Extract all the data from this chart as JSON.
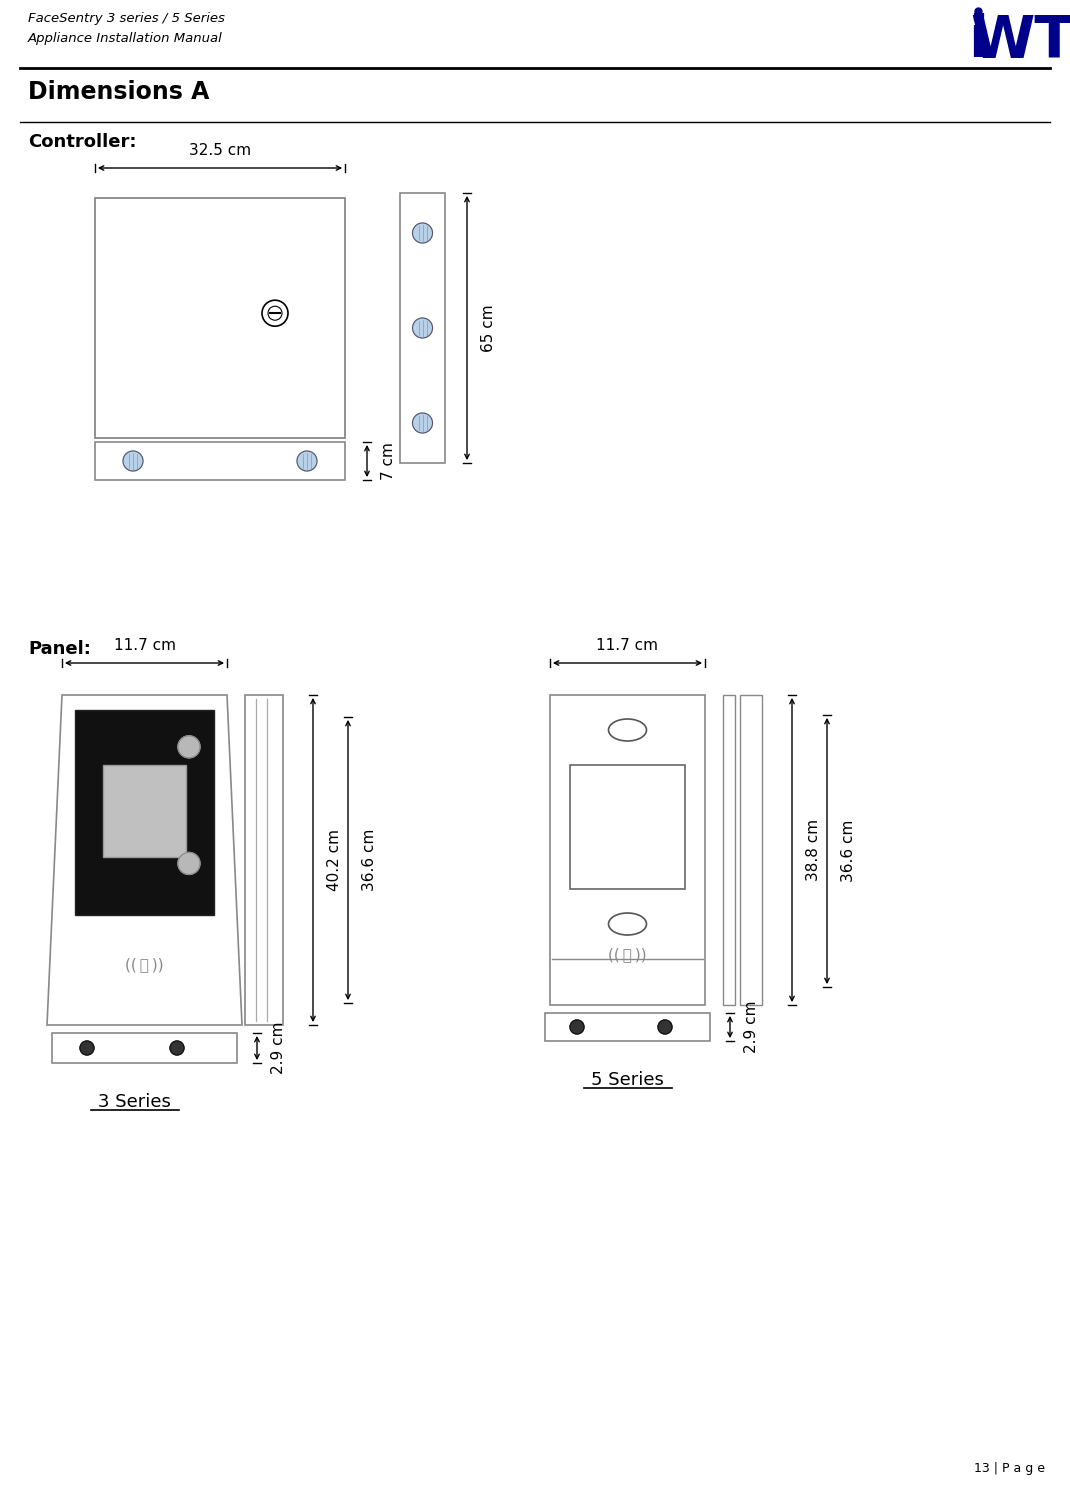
{
  "title_line1": "FaceSentry 3 series / 5 Series",
  "title_line2": "Appliance Installation Manual",
  "section_title": "Dimensions A",
  "controller_label": "Controller:",
  "panel_label": "Panel:",
  "controller_width_label": "32.5 cm",
  "controller_side_height_label": "65 cm",
  "controller_bottom_height_label": "7 cm",
  "panel_3_width_label": "11.7 cm",
  "panel_3_height_label": "40.2 cm",
  "panel_3_side_height_label": "36.6 cm",
  "panel_3_bottom_label": "2.9 cm",
  "panel_5_width_label": "11.7 cm",
  "panel_5_height_label": "38.8 cm",
  "panel_5_side_height_label": "36.6 cm",
  "panel_5_bottom_label": "2.9 cm",
  "series_3_label": "3 Series",
  "series_5_label": "5 Series",
  "page_number": "13 | P a g e",
  "bg_color": "#ffffff",
  "logo_color": "#00008B",
  "box_color": "#888888",
  "screw_fill": "#b8d0e8",
  "screw_hatch": "#8899aa",
  "black_panel": "#111111",
  "grey_rect": "#c0c0c0"
}
